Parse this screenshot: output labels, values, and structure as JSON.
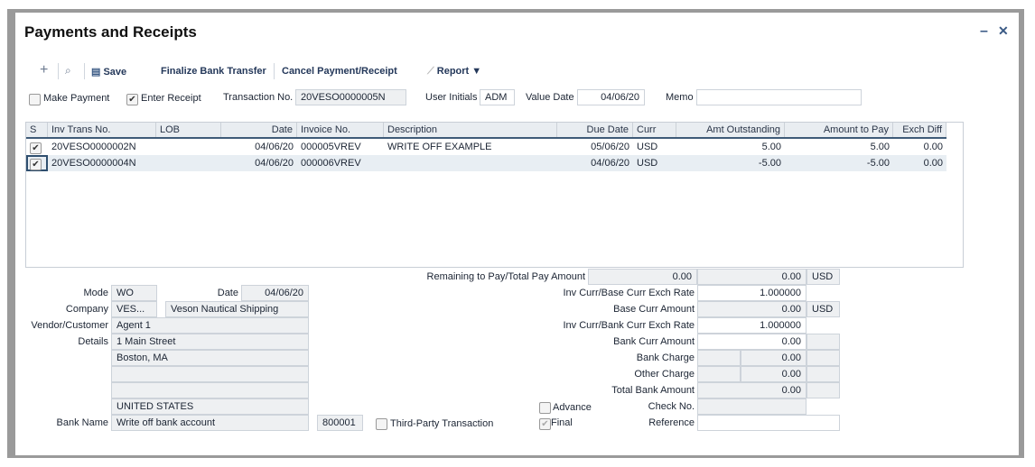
{
  "window": {
    "title": "Payments and Receipts",
    "minimize_icon": "minus-icon",
    "close_icon": "close-icon"
  },
  "toolbar": {
    "add_icon": "plus-icon",
    "search_icon": "search-icon",
    "save": "Save",
    "finalize": "Finalize Bank Transfer",
    "cancel": "Cancel Payment/Receipt",
    "report": "Report"
  },
  "options": {
    "make_payment": "Make Payment",
    "make_payment_checked": false,
    "enter_receipt": "Enter Receipt",
    "enter_receipt_checked": true,
    "transaction_no_label": "Transaction No.",
    "transaction_no": "20VESO0000005N",
    "user_initials_label": "User Initials",
    "user_initials": "ADM",
    "value_date_label": "Value Date",
    "value_date": "04/06/20",
    "memo_label": "Memo",
    "memo": ""
  },
  "grid": {
    "headers": [
      "S",
      "Inv Trans No.",
      "LOB",
      "Date",
      "Invoice No.",
      "Description",
      "Due Date",
      "Curr",
      "Amt Outstanding",
      "Amount to Pay",
      "Exch Diff"
    ],
    "rows": [
      {
        "selected": true,
        "inv_trans": "20VESO0000002N",
        "lob": "",
        "date": "04/06/20",
        "invoice": "000005VREV",
        "desc": "WRITE OFF EXAMPLE",
        "due": "05/06/20",
        "curr": "USD",
        "outstanding": "5.00",
        "to_pay": "5.00",
        "exch": "0.00"
      },
      {
        "selected": true,
        "inv_trans": "20VESO0000004N",
        "lob": "",
        "date": "04/06/20",
        "invoice": "000006VREV",
        "desc": "",
        "due": "04/06/20",
        "curr": "USD",
        "outstanding": "-5.00",
        "to_pay": "-5.00",
        "exch": "0.00"
      }
    ]
  },
  "details": {
    "mode_label": "Mode",
    "mode": "WO",
    "date_label": "Date",
    "date": "04/06/20",
    "company_label": "Company",
    "company_code": "VES...",
    "company_name": "Veson Nautical Shipping",
    "vendor_label": "Vendor/Customer",
    "vendor": "Agent 1",
    "details_label": "Details",
    "addr1": "1 Main Street",
    "addr2": "Boston, MA",
    "addr3": "",
    "addr4": "",
    "country": "UNITED STATES",
    "bank_label": "Bank Name",
    "bank": "Write off bank account",
    "bank_code": "800001",
    "third_party": "Third-Party Transaction"
  },
  "totals": {
    "remaining_label": "Remaining to Pay/Total Pay Amount",
    "remaining": "0.00",
    "total_pay": "0.00",
    "remaining_curr": "USD",
    "base_rate_label": "Inv Curr/Base Curr Exch Rate",
    "base_rate": "1.000000",
    "base_amt_label": "Base Curr Amount",
    "base_amt": "0.00",
    "base_curr": "USD",
    "bank_rate_label": "Inv Curr/Bank Curr Exch Rate",
    "bank_rate": "1.000000",
    "bank_amt_label": "Bank Curr Amount",
    "bank_amt": "0.00",
    "bank_charge_label": "Bank Charge",
    "bank_charge": "0.00",
    "other_charge_label": "Other Charge",
    "other_charge": "0.00",
    "total_bank_label": "Total Bank Amount",
    "total_bank": "0.00",
    "advance": "Advance",
    "final": "Final",
    "check_label": "Check No.",
    "check": "",
    "reference_label": "Reference",
    "reference": ""
  }
}
